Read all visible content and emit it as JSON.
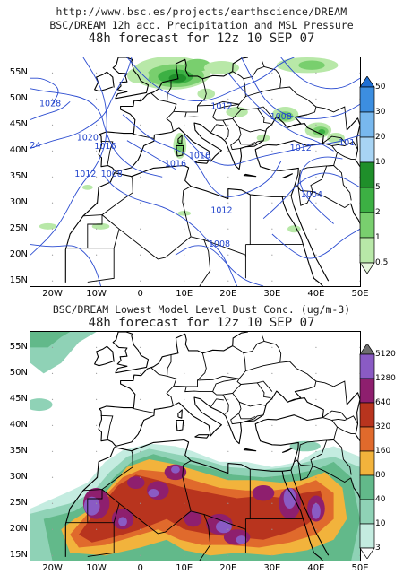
{
  "header_url": "http://www.bsc.es/projects/earthscience/DREAM",
  "map_extent": {
    "lon": [
      -25,
      50
    ],
    "lat": [
      14,
      58
    ]
  },
  "lat_ticks": [
    "55N",
    "50N",
    "45N",
    "40N",
    "35N",
    "30N",
    "25N",
    "20N",
    "15N"
  ],
  "lat_values": [
    55,
    50,
    45,
    40,
    35,
    30,
    25,
    20,
    15
  ],
  "lon_ticks": [
    "20W",
    "10W",
    "0",
    "10E",
    "20E",
    "30E",
    "40E",
    "50E"
  ],
  "lon_values": [
    -20,
    -10,
    0,
    10,
    20,
    30,
    40,
    50
  ],
  "panel_top": {
    "title": "BSC/DREAM 12h acc. Precipitation and MSL Pressure",
    "subtitle": "48h forecast for 12z 10 SEP 07",
    "colorbar": {
      "labels": [
        "50",
        "30",
        "20",
        "10",
        "5",
        "2",
        "1",
        "0.5"
      ],
      "colors": [
        "#1e6fd4",
        "#3c8ee0",
        "#78b8ee",
        "#a8d4f4",
        "#1f8f2a",
        "#3cb043",
        "#79cf6e",
        "#b8e8a8",
        "#e6f7dc"
      ]
    },
    "isobars": [
      {
        "label": "1028",
        "lon": -20.5,
        "lat": 49
      },
      {
        "label": "024",
        "lon": -24.5,
        "lat": 41
      },
      {
        "label": "1020",
        "lon": -12,
        "lat": 42.5
      },
      {
        "label": "1016",
        "lon": -8,
        "lat": 40.8
      },
      {
        "label": "1016",
        "lon": 8,
        "lat": 37.5
      },
      {
        "label": "1016",
        "lon": 13.5,
        "lat": 39
      },
      {
        "label": "1012",
        "lon": -12.5,
        "lat": 35.5
      },
      {
        "label": "1008",
        "lon": -6.5,
        "lat": 35.5
      },
      {
        "label": "1012",
        "lon": 18.5,
        "lat": 48.5
      },
      {
        "label": "1008",
        "lon": 32,
        "lat": 46.5
      },
      {
        "label": "1012",
        "lon": 36.5,
        "lat": 40.5
      },
      {
        "label": "101",
        "lon": 47,
        "lat": 41.5
      },
      {
        "label": "1004",
        "lon": 39,
        "lat": 31.5
      },
      {
        "label": "1012",
        "lon": 18.5,
        "lat": 28.5
      },
      {
        "label": "1008",
        "lon": 18,
        "lat": 22
      }
    ]
  },
  "panel_bottom": {
    "title": "BSC/DREAM Lowest Model Level Dust Conc. (ug/m-3)",
    "subtitle": "48h forecast for 12z 10 SEP 07",
    "colorbar": {
      "labels": [
        "5120",
        "1280",
        "640",
        "320",
        "160",
        "80",
        "40",
        "10",
        "3"
      ],
      "colors": [
        "#6e6e6e",
        "#8a5bc4",
        "#8e1f6e",
        "#b8341e",
        "#e06a2c",
        "#f2b33c",
        "#62b98a",
        "#8fd2b6",
        "#c4ece0",
        "#ffffff"
      ]
    }
  }
}
